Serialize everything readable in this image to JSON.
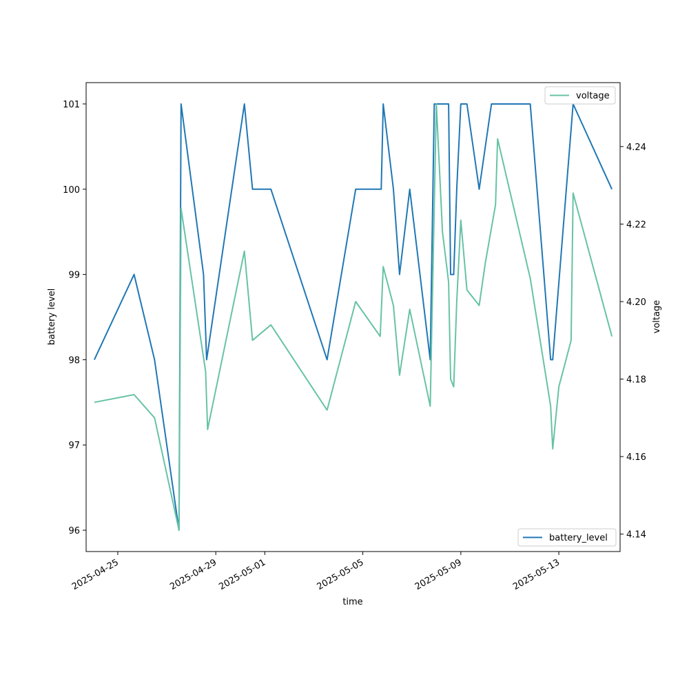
{
  "chart_data": {
    "type": "line",
    "xlabel": "time",
    "ylabel": "battery level",
    "ylabel_right": "voltage",
    "x_tick_labels": [
      "2025-04-25",
      "2025-04-29",
      "2025-05-01",
      "2025-05-05",
      "2025-05-09",
      "2025-05-13"
    ],
    "x_range": [
      "2025-04-23T17:00",
      "2025-05-15T12:00"
    ],
    "y_left_ticks": [
      96,
      97,
      98,
      99,
      100,
      101
    ],
    "y_left_range": [
      95.75,
      101.25
    ],
    "y_right_ticks": [
      "4.14",
      "4.16",
      "4.18",
      "4.20",
      "4.22",
      "4.24"
    ],
    "y_right_range": [
      4.1355,
      4.2565
    ],
    "series": [
      {
        "name": "battery_level",
        "axis": "left",
        "color": "#1f77b4",
        "legend_position": "lower right",
        "points": [
          [
            "2025-04-24T01:00",
            98
          ],
          [
            "2025-04-25T16:00",
            99
          ],
          [
            "2025-04-26T12:00",
            98
          ],
          [
            "2025-04-27T12:00",
            96
          ],
          [
            "2025-04-27T14:00",
            101
          ],
          [
            "2025-04-28T12:00",
            99
          ],
          [
            "2025-04-28T15:00",
            98
          ],
          [
            "2025-04-30T04:00",
            101
          ],
          [
            "2025-04-30T12:00",
            100
          ],
          [
            "2025-05-01T06:00",
            100
          ],
          [
            "2025-05-03T13:00",
            98
          ],
          [
            "2025-05-04T17:00",
            100
          ],
          [
            "2025-05-05T18:00",
            100
          ],
          [
            "2025-05-05T20:00",
            101
          ],
          [
            "2025-05-06T06:00",
            100
          ],
          [
            "2025-05-06T12:00",
            99
          ],
          [
            "2025-05-06T22:00",
            100
          ],
          [
            "2025-05-07T18:00",
            98
          ],
          [
            "2025-05-07T22:00",
            101
          ],
          [
            "2025-05-08T12:00",
            101
          ],
          [
            "2025-05-08T14:00",
            99
          ],
          [
            "2025-05-08T17:00",
            99
          ],
          [
            "2025-05-08T20:00",
            100
          ],
          [
            "2025-05-09T00:00",
            101
          ],
          [
            "2025-05-09T06:00",
            101
          ],
          [
            "2025-05-09T18:00",
            100
          ],
          [
            "2025-05-10T06:00",
            101
          ],
          [
            "2025-05-11T20:00",
            101
          ],
          [
            "2025-05-12T16:00",
            98
          ],
          [
            "2025-05-12T18:00",
            98
          ],
          [
            "2025-05-13T14:00",
            101
          ],
          [
            "2025-05-15T04:00",
            100
          ]
        ]
      },
      {
        "name": "voltage",
        "axis": "right",
        "color": "#66c2a5",
        "legend_position": "upper right",
        "points": [
          [
            "2025-04-24T01:00",
            4.174
          ],
          [
            "2025-04-25T16:00",
            4.176
          ],
          [
            "2025-04-26T12:00",
            4.17
          ],
          [
            "2025-04-27T12:00",
            4.141
          ],
          [
            "2025-04-27T14:00",
            4.224
          ],
          [
            "2025-04-28T14:00",
            4.182
          ],
          [
            "2025-04-28T16:00",
            4.167
          ],
          [
            "2025-04-30T04:00",
            4.213
          ],
          [
            "2025-04-30T12:00",
            4.19
          ],
          [
            "2025-05-01T06:00",
            4.194
          ],
          [
            "2025-05-03T13:00",
            4.172
          ],
          [
            "2025-05-04T17:00",
            4.2
          ],
          [
            "2025-05-05T17:00",
            4.191
          ],
          [
            "2025-05-05T20:00",
            4.209
          ],
          [
            "2025-05-06T06:00",
            4.199
          ],
          [
            "2025-05-06T12:00",
            4.181
          ],
          [
            "2025-05-06T22:00",
            4.198
          ],
          [
            "2025-05-07T18:00",
            4.173
          ],
          [
            "2025-05-08T00:00",
            4.251
          ],
          [
            "2025-05-08T06:00",
            4.218
          ],
          [
            "2025-05-08T12:00",
            4.205
          ],
          [
            "2025-05-08T14:00",
            4.18
          ],
          [
            "2025-05-08T17:00",
            4.178
          ],
          [
            "2025-05-08T20:00",
            4.2
          ],
          [
            "2025-05-09T00:00",
            4.221
          ],
          [
            "2025-05-09T06:00",
            4.203
          ],
          [
            "2025-05-09T18:00",
            4.199
          ],
          [
            "2025-05-10T00:00",
            4.21
          ],
          [
            "2025-05-10T10:00",
            4.225
          ],
          [
            "2025-05-10T12:00",
            4.242
          ],
          [
            "2025-05-11T20:00",
            4.206
          ],
          [
            "2025-05-12T16:00",
            4.173
          ],
          [
            "2025-05-12T18:00",
            4.162
          ],
          [
            "2025-05-13T00:00",
            4.178
          ],
          [
            "2025-05-13T12:00",
            4.19
          ],
          [
            "2025-05-13T14:00",
            4.228
          ],
          [
            "2025-05-15T04:00",
            4.191
          ]
        ]
      }
    ]
  }
}
